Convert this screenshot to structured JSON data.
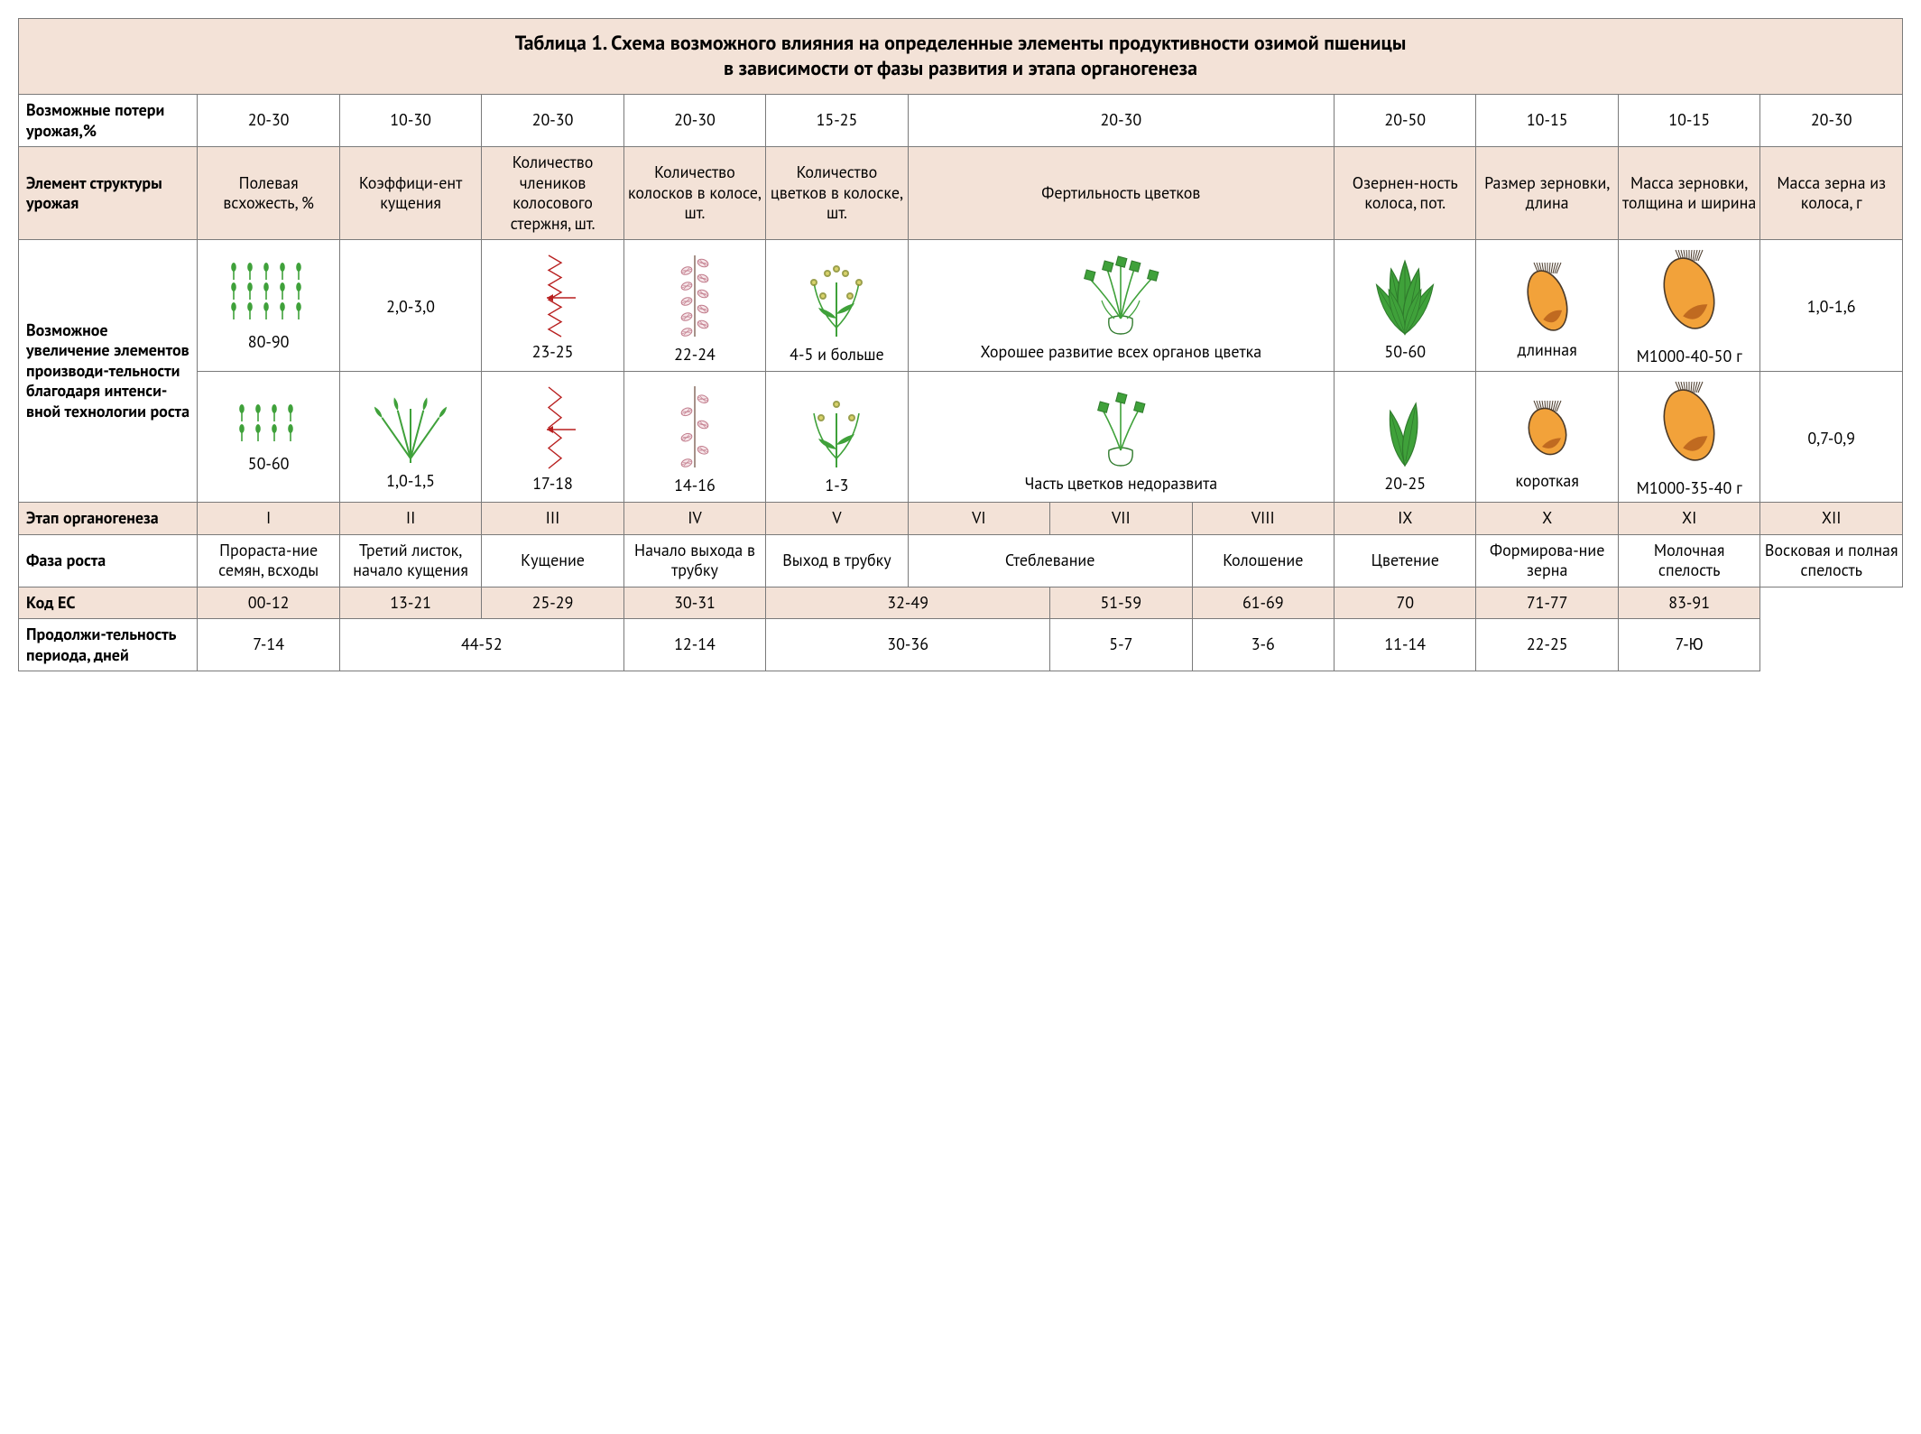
{
  "colors": {
    "peach": "#f3e2d7",
    "border": "#7a7a7a",
    "green": "#3fa13a",
    "green_outline": "#2f7a2c",
    "red": "#b81f1f",
    "rachis_pink_fill": "#f6e5e9",
    "rachis_pink_stroke": "#c07a8a",
    "orange_fill": "#f2a23a",
    "orange_dark": "#c06a20",
    "brown_stroke": "#4a3a2a",
    "olive": "#8a8f2f"
  },
  "title": "Таблица 1. Схема возможного влияния на определенные элементы продуктивности озимой пшеницы\nв зависимости от фазы развития и этапа органогенеза",
  "rows": {
    "loss_label": "Возможные потери урожая,%",
    "struct_label": "Элемент структуры урожая",
    "increase_label": "Возможное увеличение элементов производи-тельности благодаря интенси-вной технологии роста",
    "organo_label": "Этап органогенеза",
    "phase_label": "Фаза роста",
    "ec_label": "Код ЕС",
    "duration_label": "Продолжи-тельность периода, дней"
  },
  "loss": [
    "20-30",
    "10-30",
    "20-30",
    "20-30",
    "15-25",
    "20-30",
    "20-50",
    "10-15",
    "10-15",
    "20-30"
  ],
  "struct": [
    "Полевая всхожесть, %",
    "Коэффици-ент кущения",
    "Количество члеников колосового стержня, шт.",
    "Количество колосков в колосе, шт.",
    "Количество цветков в колоске, шт.",
    "Фертильность цветков",
    "Озернен-ность колоса, пот.",
    "Размер зерновки, длина",
    "Масса зерновки, толщина и ширина",
    "Масса зерна из колоса, г"
  ],
  "increase": {
    "top": [
      "80-90",
      "2,0-3,0",
      "23-25",
      "22-24",
      "4-5 и больше",
      "Хорошее развитие всех органов цветка",
      "50-60",
      "длинная",
      "М1000-40-50 г",
      "1,0-1,6"
    ],
    "bot": [
      "50-60",
      "1,0-1,5",
      "17-18",
      "14-16",
      "1-3",
      "Часть цветков недоразвита",
      "20-25",
      "короткая",
      "М1000-35-40 г",
      "0,7-0,9"
    ]
  },
  "organo": [
    "I",
    "II",
    "III",
    "IV",
    "V",
    "VI",
    "VII",
    "VIII",
    "IX",
    "X",
    "XI",
    "XII"
  ],
  "phase": [
    "Прораста-ние семян, всходы",
    "Третий листок, начало кущения",
    "Кущение",
    "Начало выхода в трубку",
    "Выход в трубку",
    "Стеблевание",
    "Колошение",
    "Цветение",
    "Формирова-ние зерна",
    "Молочная спелость",
    "Восковая и полная спелость"
  ],
  "phase_spans": [
    1,
    1,
    1,
    1,
    1,
    2,
    1,
    1,
    1,
    1,
    1
  ],
  "ec": [
    "00-12",
    "13-21",
    "25-29",
    "30-31",
    "32-49",
    "51-59",
    "61-69",
    "70",
    "71-77",
    "83-91"
  ],
  "ec_spans": [
    1,
    1,
    1,
    1,
    2,
    1,
    1,
    1,
    1,
    1
  ],
  "duration": [
    "7-14",
    "44-52",
    "12-14",
    "30-36",
    "5-7",
    "3-6",
    "11-14",
    "22-25",
    "7-Ю"
  ],
  "duration_spans": [
    1,
    2,
    1,
    2,
    1,
    1,
    1,
    1,
    1
  ]
}
